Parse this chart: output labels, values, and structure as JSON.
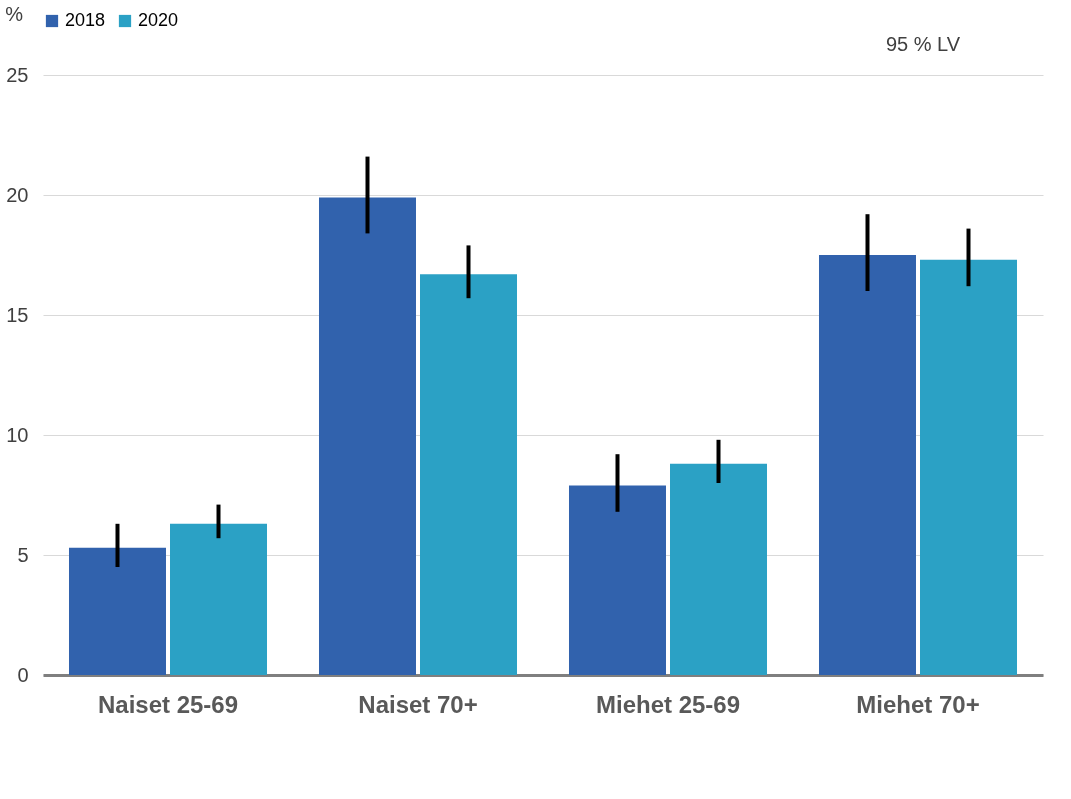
{
  "chart_data": {
    "type": "bar",
    "ylabel": "%",
    "categories": [
      "Naiset 25-69",
      "Naiset 70+",
      "Miehet 25-69",
      "Miehet 70+"
    ],
    "series": [
      {
        "name": "2018",
        "color": "#3162ad",
        "values": [
          5.3,
          19.9,
          7.9,
          17.5
        ],
        "errors": [
          [
            4.5,
            6.3
          ],
          [
            18.4,
            21.6
          ],
          [
            6.8,
            9.2
          ],
          [
            16.0,
            19.2
          ]
        ]
      },
      {
        "name": "2020",
        "color": "#2ba1c5",
        "values": [
          6.3,
          16.7,
          8.8,
          17.3
        ],
        "errors": [
          [
            5.7,
            7.1
          ],
          [
            15.7,
            17.9
          ],
          [
            8.0,
            9.8
          ],
          [
            16.2,
            18.6
          ]
        ]
      }
    ],
    "ylim": [
      0,
      25
    ],
    "yticks": [
      0,
      5,
      10,
      15,
      20,
      25
    ],
    "grid": "y",
    "legend": "top",
    "annotations": [
      "95 % LV"
    ]
  }
}
